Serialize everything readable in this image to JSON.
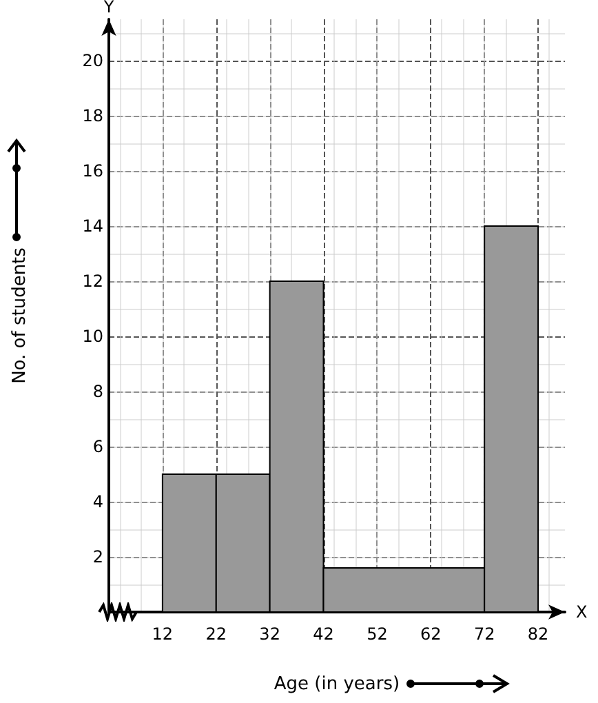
{
  "chart_data": {
    "type": "histogram",
    "xlabel": "Age (in years)",
    "ylabel": "No. of students",
    "bins": [
      12,
      22,
      32,
      42,
      72,
      82
    ],
    "values": [
      5,
      5,
      12,
      1.6,
      14
    ],
    "color": "#999999",
    "xlim": [
      2,
      87
    ],
    "xticks": [
      12,
      22,
      32,
      42,
      52,
      62,
      72,
      82
    ],
    "ylim": [
      0,
      21.5
    ],
    "yticks": [
      2,
      4,
      6,
      8,
      10,
      12,
      14,
      16,
      18,
      20
    ],
    "grid": true,
    "annotations": [
      "X",
      "Y"
    ]
  }
}
